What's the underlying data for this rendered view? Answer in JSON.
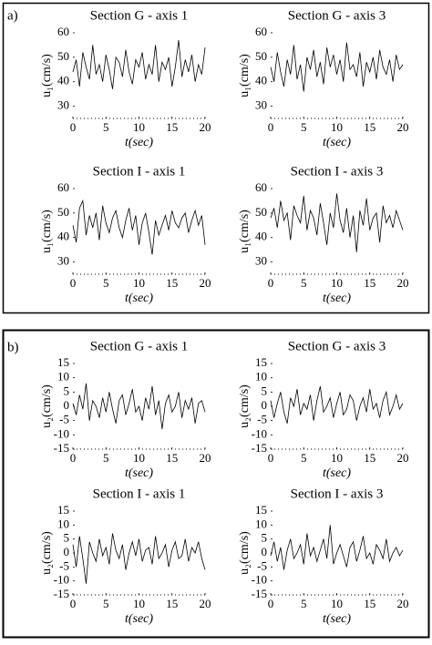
{
  "panels": [
    "a)",
    "b)"
  ],
  "chart_data": [
    {
      "type": "line",
      "title": "Section G - axis 1",
      "xlabel": "t(sec)",
      "ylabel": "u₁(cm/s)",
      "color": "#000000",
      "x": [
        0,
        0.5,
        1,
        1.5,
        2,
        2.5,
        3,
        3.5,
        4,
        4.5,
        5,
        5.5,
        6,
        6.5,
        7,
        7.5,
        8,
        8.5,
        9,
        9.5,
        10,
        10.5,
        11,
        11.5,
        12,
        12.5,
        13,
        13.5,
        14,
        14.5,
        15,
        15.5,
        16,
        16.5,
        17,
        17.5,
        18,
        18.5,
        19,
        19.5,
        20
      ],
      "values": [
        44,
        49,
        38,
        52,
        46,
        41,
        55,
        43,
        47,
        40,
        51,
        45,
        37,
        50,
        48,
        42,
        53,
        44,
        39,
        49,
        46,
        52,
        41,
        47,
        43,
        55,
        40,
        48,
        45,
        50,
        38,
        46,
        57,
        42,
        49,
        44,
        51,
        40,
        47,
        43,
        54
      ],
      "xlim": [
        0,
        20
      ],
      "xticks": [
        0,
        5,
        10,
        15,
        20
      ],
      "ylim": [
        25,
        60
      ],
      "yticks": [
        30,
        40,
        50,
        60
      ]
    },
    {
      "type": "line",
      "title": "Section G - axis 3",
      "xlabel": "t(sec)",
      "ylabel": "u₁(cm/s)",
      "color": "#000000",
      "x": [
        0,
        0.5,
        1,
        1.5,
        2,
        2.5,
        3,
        3.5,
        4,
        4.5,
        5,
        5.5,
        6,
        6.5,
        7,
        7.5,
        8,
        8.5,
        9,
        9.5,
        10,
        10.5,
        11,
        11.5,
        12,
        12.5,
        13,
        13.5,
        14,
        14.5,
        15,
        15.5,
        16,
        16.5,
        17,
        17.5,
        18,
        18.5,
        19,
        19.5,
        20
      ],
      "values": [
        46,
        40,
        52,
        44,
        38,
        49,
        43,
        55,
        41,
        47,
        36,
        50,
        45,
        53,
        42,
        48,
        39,
        54,
        46,
        51,
        43,
        49,
        40,
        56,
        45,
        47,
        42,
        52,
        38,
        48,
        44,
        50,
        41,
        53,
        46,
        43,
        49,
        40,
        51,
        45,
        47
      ],
      "xlim": [
        0,
        20
      ],
      "xticks": [
        0,
        5,
        10,
        15,
        20
      ],
      "ylim": [
        25,
        60
      ],
      "yticks": [
        30,
        40,
        50,
        60
      ]
    },
    {
      "type": "line",
      "title": "Section I - axis 1",
      "xlabel": "t(sec)",
      "ylabel": "u₁(cm/s)",
      "color": "#000000",
      "x": [
        0,
        0.5,
        1,
        1.5,
        2,
        2.5,
        3,
        3.5,
        4,
        4.5,
        5,
        5.5,
        6,
        6.5,
        7,
        7.5,
        8,
        8.5,
        9,
        9.5,
        10,
        10.5,
        11,
        11.5,
        12,
        12.5,
        13,
        13.5,
        14,
        14.5,
        15,
        15.5,
        16,
        16.5,
        17,
        17.5,
        18,
        18.5,
        19,
        19.5,
        20
      ],
      "values": [
        45,
        38,
        52,
        55,
        41,
        49,
        44,
        50,
        39,
        53,
        46,
        42,
        48,
        51,
        44,
        40,
        47,
        52,
        43,
        49,
        37,
        46,
        50,
        42,
        33,
        47,
        41,
        45,
        49,
        43,
        51,
        46,
        44,
        48,
        50,
        42,
        47,
        51,
        45,
        49,
        37
      ],
      "xlim": [
        0,
        20
      ],
      "xticks": [
        0,
        5,
        10,
        15,
        20
      ],
      "ylim": [
        25,
        60
      ],
      "yticks": [
        30,
        40,
        50,
        60
      ]
    },
    {
      "type": "line",
      "title": "Section I - axis 3",
      "xlabel": "t(sec)",
      "ylabel": "u₁(cm/s)",
      "color": "#000000",
      "x": [
        0,
        0.5,
        1,
        1.5,
        2,
        2.5,
        3,
        3.5,
        4,
        4.5,
        5,
        5.5,
        6,
        6.5,
        7,
        7.5,
        8,
        8.5,
        9,
        9.5,
        10,
        10.5,
        11,
        11.5,
        12,
        12.5,
        13,
        13.5,
        14,
        14.5,
        15,
        15.5,
        16,
        16.5,
        17,
        17.5,
        18,
        18.5,
        19,
        19.5,
        20
      ],
      "values": [
        48,
        52,
        44,
        55,
        47,
        50,
        39,
        53,
        49,
        46,
        57,
        43,
        51,
        48,
        41,
        54,
        46,
        37,
        50,
        44,
        58,
        47,
        42,
        52,
        40,
        49,
        34,
        51,
        45,
        56,
        43,
        48,
        50,
        38,
        53,
        46,
        49,
        44,
        51,
        47,
        43
      ],
      "xlim": [
        0,
        20
      ],
      "xticks": [
        0,
        5,
        10,
        15,
        20
      ],
      "ylim": [
        25,
        60
      ],
      "yticks": [
        30,
        40,
        50,
        60
      ]
    },
    {
      "type": "line",
      "title": "Section G - axis 1",
      "xlabel": "t(sec)",
      "ylabel": "u₂(cm/s)",
      "color": "#000000",
      "x": [
        0,
        0.5,
        1,
        1.5,
        2,
        2.5,
        3,
        3.5,
        4,
        4.5,
        5,
        5.5,
        6,
        6.5,
        7,
        7.5,
        8,
        8.5,
        9,
        9.5,
        10,
        10.5,
        11,
        11.5,
        12,
        12.5,
        13,
        13.5,
        14,
        14.5,
        15,
        15.5,
        16,
        16.5,
        17,
        17.5,
        18,
        18.5,
        19,
        19.5,
        20
      ],
      "values": [
        1,
        -3,
        4,
        -1,
        8,
        -5,
        2,
        0,
        -4,
        3,
        -2,
        5,
        -1,
        -6,
        2,
        4,
        -3,
        1,
        6,
        -2,
        0,
        -5,
        3,
        -1,
        7,
        -3,
        2,
        -8,
        1,
        4,
        -2,
        0,
        5,
        -4,
        2,
        -1,
        3,
        -6,
        1,
        2,
        -2
      ],
      "xlim": [
        0,
        20
      ],
      "xticks": [
        0,
        5,
        10,
        15,
        20
      ],
      "ylim": [
        -15,
        15
      ],
      "yticks": [
        -15,
        -10,
        -5,
        0,
        5,
        10,
        15
      ]
    },
    {
      "type": "line",
      "title": "Section G - axis 3",
      "xlabel": "t(sec)",
      "ylabel": "u₂(cm/s)",
      "color": "#000000",
      "x": [
        0,
        0.5,
        1,
        1.5,
        2,
        2.5,
        3,
        3.5,
        4,
        4.5,
        5,
        5.5,
        6,
        6.5,
        7,
        7.5,
        8,
        8.5,
        9,
        9.5,
        10,
        10.5,
        11,
        11.5,
        12,
        12.5,
        13,
        13.5,
        14,
        14.5,
        15,
        15.5,
        16,
        16.5,
        17,
        17.5,
        18,
        18.5,
        19,
        19.5,
        20
      ],
      "values": [
        2,
        -4,
        1,
        5,
        -2,
        -6,
        3,
        0,
        6,
        -3,
        1,
        -1,
        4,
        -5,
        2,
        7,
        -2,
        0,
        3,
        -4,
        1,
        5,
        -3,
        -1,
        4,
        2,
        -5,
        0,
        3,
        -2,
        6,
        -1,
        1,
        -4,
        2,
        5,
        -3,
        0,
        4,
        -1,
        1
      ],
      "xlim": [
        0,
        20
      ],
      "xticks": [
        0,
        5,
        10,
        15,
        20
      ],
      "ylim": [
        -15,
        15
      ],
      "yticks": [
        -15,
        -10,
        -5,
        0,
        5,
        10,
        15
      ]
    },
    {
      "type": "line",
      "title": "Section I - axis 1",
      "xlabel": "t(sec)",
      "ylabel": "u₂(cm/s)",
      "color": "#000000",
      "x": [
        0,
        0.5,
        1,
        1.5,
        2,
        2.5,
        3,
        3.5,
        4,
        4.5,
        5,
        5.5,
        6,
        6.5,
        7,
        7.5,
        8,
        8.5,
        9,
        9.5,
        10,
        10.5,
        11,
        11.5,
        12,
        12.5,
        13,
        13.5,
        14,
        14.5,
        15,
        15.5,
        16,
        16.5,
        17,
        17.5,
        18,
        18.5,
        19,
        19.5,
        20
      ],
      "values": [
        3,
        -5,
        6,
        -2,
        -11,
        4,
        0,
        -3,
        5,
        -1,
        2,
        -4,
        7,
        1,
        -2,
        3,
        -6,
        0,
        4,
        -1,
        5,
        -3,
        1,
        2,
        -4,
        6,
        -2,
        0,
        3,
        -5,
        1,
        4,
        -2,
        -1,
        5,
        -3,
        2,
        0,
        4,
        -2,
        -6
      ],
      "xlim": [
        0,
        20
      ],
      "xticks": [
        0,
        5,
        10,
        15,
        20
      ],
      "ylim": [
        -15,
        15
      ],
      "yticks": [
        -15,
        -10,
        -5,
        0,
        5,
        10,
        15
      ]
    },
    {
      "type": "line",
      "title": "Section I - axis 3",
      "xlabel": "t(sec)",
      "ylabel": "u₂(cm/s)",
      "color": "#000000",
      "x": [
        0,
        0.5,
        1,
        1.5,
        2,
        2.5,
        3,
        3.5,
        4,
        4.5,
        5,
        5.5,
        6,
        6.5,
        7,
        7.5,
        8,
        8.5,
        9,
        9.5,
        10,
        10.5,
        11,
        11.5,
        12,
        12.5,
        13,
        13.5,
        14,
        14.5,
        15,
        15.5,
        16,
        16.5,
        17,
        17.5,
        18,
        18.5,
        19,
        19.5,
        20
      ],
      "values": [
        -1,
        4,
        -3,
        2,
        -6,
        1,
        5,
        -2,
        0,
        3,
        -4,
        7,
        -1,
        2,
        -3,
        1,
        5,
        -2,
        10,
        -4,
        0,
        3,
        -1,
        -5,
        2,
        4,
        -3,
        1,
        6,
        -2,
        0,
        -4,
        3,
        1,
        -2,
        5,
        -3,
        0,
        2,
        -1,
        1
      ],
      "xlim": [
        0,
        20
      ],
      "xticks": [
        0,
        5,
        10,
        15,
        20
      ],
      "ylim": [
        -15,
        15
      ],
      "yticks": [
        -15,
        -10,
        -5,
        0,
        5,
        10,
        15
      ]
    }
  ]
}
